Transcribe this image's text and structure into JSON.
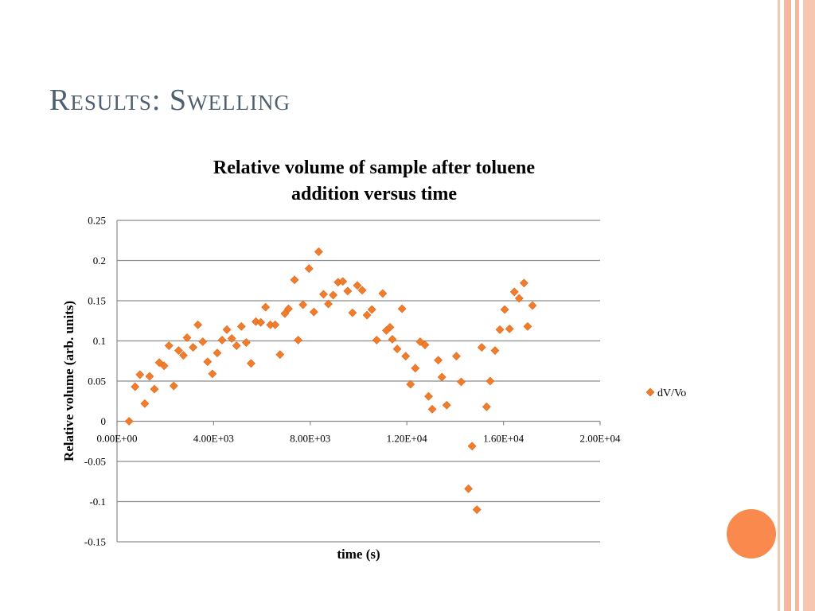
{
  "slide": {
    "title": "Results: Swelling",
    "accent_color": "#f9894c",
    "border_color": "#f4b89c"
  },
  "chart_data": {
    "type": "scatter",
    "title_lines": [
      "Relative volume of sample after toluene",
      "addition versus time"
    ],
    "xlabel": "time (s)",
    "ylabel": "Relative volume (arb. units)",
    "xlim": [
      0,
      20000
    ],
    "ylim": [
      -0.15,
      0.25
    ],
    "xticks": [
      0,
      4000,
      8000,
      12000,
      16000,
      20000
    ],
    "xtick_labels": [
      "0.00E+00",
      "4.00E+03",
      "8.00E+03",
      "1.20E+04",
      "1.60E+04",
      "2.00E+04"
    ],
    "yticks": [
      0.25,
      0.2,
      0.15,
      0.1,
      0.05,
      0,
      -0.05,
      -0.1,
      -0.15
    ],
    "ytick_labels": [
      "0.25",
      "0.2",
      "0.15",
      "0.1",
      "0.05",
      "0",
      "-0.05",
      "-0.1",
      "-0.15"
    ],
    "grid": true,
    "legend_position": "right",
    "series": [
      {
        "name": "dV/Vo",
        "color": "#f07d2b",
        "marker": "diamond",
        "points": [
          [
            500,
            0.0
          ],
          [
            750,
            0.043
          ],
          [
            950,
            0.058
          ],
          [
            1150,
            0.022
          ],
          [
            1350,
            0.056
          ],
          [
            1550,
            0.04
          ],
          [
            1750,
            0.073
          ],
          [
            1950,
            0.069
          ],
          [
            2150,
            0.094
          ],
          [
            2350,
            0.044
          ],
          [
            2550,
            0.088
          ],
          [
            2750,
            0.082
          ],
          [
            2900,
            0.104
          ],
          [
            3150,
            0.092
          ],
          [
            3350,
            0.12
          ],
          [
            3550,
            0.099
          ],
          [
            3750,
            0.074
          ],
          [
            3950,
            0.059
          ],
          [
            4150,
            0.085
          ],
          [
            4350,
            0.101
          ],
          [
            4550,
            0.114
          ],
          [
            4750,
            0.103
          ],
          [
            4950,
            0.094
          ],
          [
            5150,
            0.118
          ],
          [
            5350,
            0.098
          ],
          [
            5550,
            0.072
          ],
          [
            5750,
            0.124
          ],
          [
            5950,
            0.123
          ],
          [
            6150,
            0.142
          ],
          [
            6350,
            0.12
          ],
          [
            6550,
            0.12
          ],
          [
            6750,
            0.083
          ],
          [
            6950,
            0.134
          ],
          [
            7100,
            0.14
          ],
          [
            7350,
            0.176
          ],
          [
            7500,
            0.101
          ],
          [
            7700,
            0.145
          ],
          [
            7950,
            0.19
          ],
          [
            8150,
            0.136
          ],
          [
            8350,
            0.211
          ],
          [
            8550,
            0.158
          ],
          [
            8750,
            0.146
          ],
          [
            8950,
            0.157
          ],
          [
            9150,
            0.173
          ],
          [
            9350,
            0.174
          ],
          [
            9550,
            0.162
          ],
          [
            9750,
            0.135
          ],
          [
            9950,
            0.169
          ],
          [
            10150,
            0.163
          ],
          [
            10350,
            0.132
          ],
          [
            10550,
            0.139
          ],
          [
            10750,
            0.101
          ],
          [
            11000,
            0.159
          ],
          [
            11150,
            0.113
          ],
          [
            11300,
            0.117
          ],
          [
            11400,
            0.102
          ],
          [
            11600,
            0.09
          ],
          [
            11800,
            0.14
          ],
          [
            11950,
            0.081
          ],
          [
            12150,
            0.046
          ],
          [
            12350,
            0.066
          ],
          [
            12550,
            0.099
          ],
          [
            12750,
            0.095
          ],
          [
            12900,
            0.031
          ],
          [
            13050,
            0.015
          ],
          [
            13300,
            0.076
          ],
          [
            13450,
            0.055
          ],
          [
            13650,
            0.02
          ],
          [
            14050,
            0.081
          ],
          [
            14250,
            0.049
          ],
          [
            14550,
            -0.084
          ],
          [
            14700,
            -0.031
          ],
          [
            14900,
            -0.11
          ],
          [
            15100,
            0.092
          ],
          [
            15300,
            0.018
          ],
          [
            15450,
            0.05
          ],
          [
            15650,
            0.088
          ],
          [
            15850,
            0.114
          ],
          [
            16050,
            0.139
          ],
          [
            16250,
            0.115
          ],
          [
            16450,
            0.161
          ],
          [
            16650,
            0.153
          ],
          [
            16850,
            0.172
          ],
          [
            17000,
            0.118
          ],
          [
            17200,
            0.144
          ]
        ]
      }
    ]
  }
}
